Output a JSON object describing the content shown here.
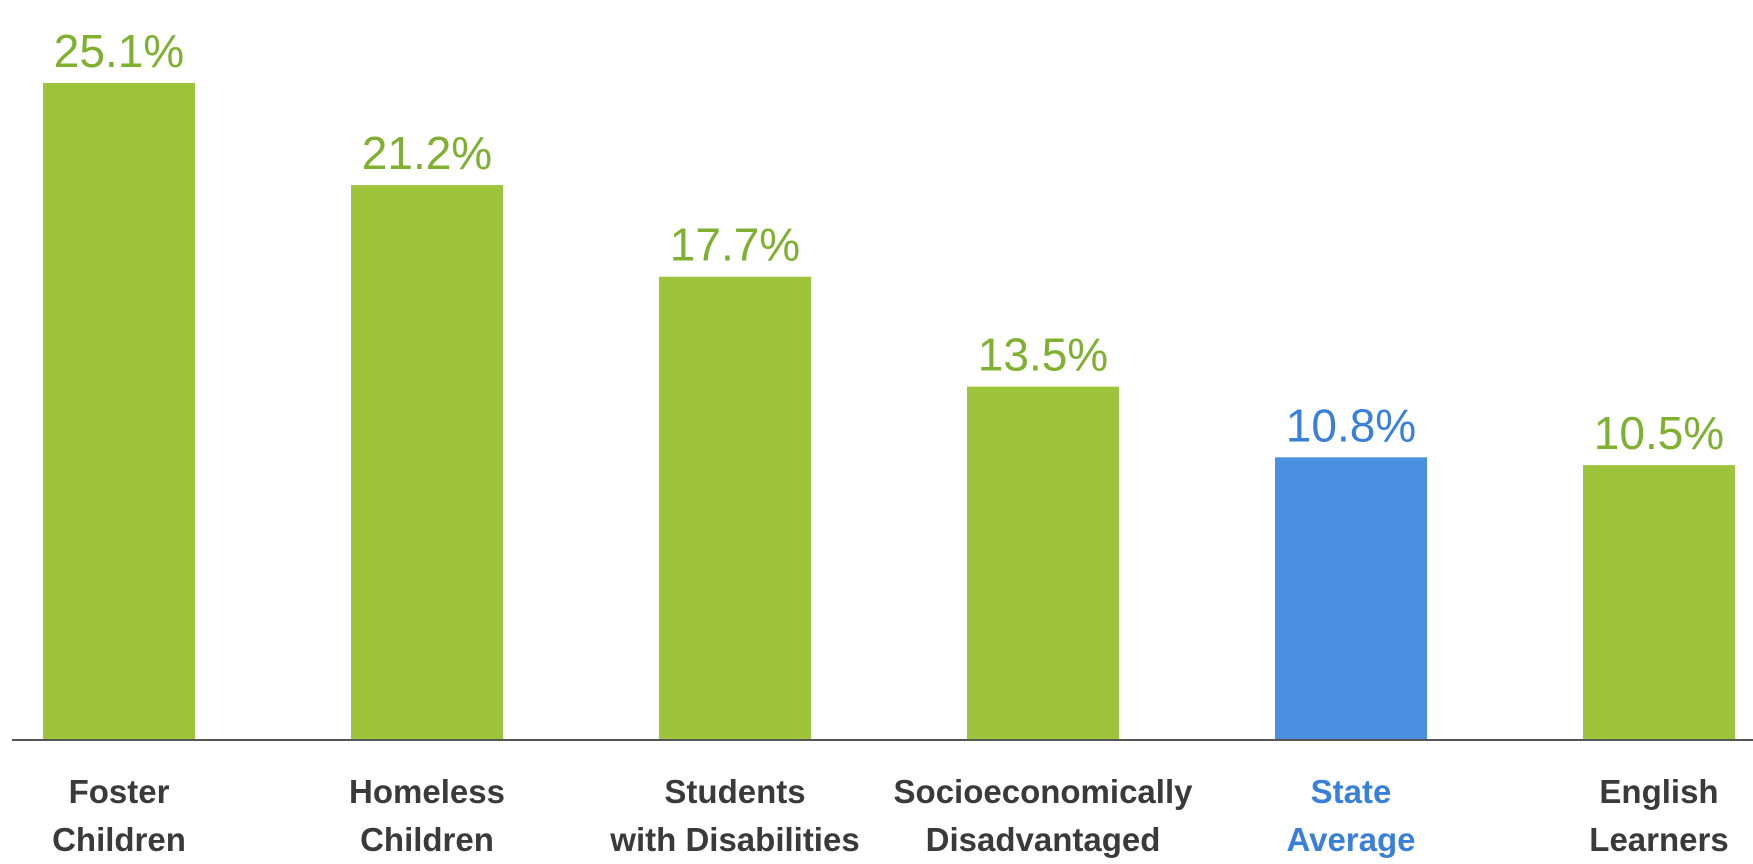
{
  "chart_data": {
    "type": "bar",
    "categories": [
      [
        "Foster",
        "Children"
      ],
      [
        "Homeless",
        "Children"
      ],
      [
        "Students",
        "with Disabilities"
      ],
      [
        "Socioeconomically",
        "Disadvantaged"
      ],
      [
        "State",
        "Average"
      ],
      [
        "English",
        "Learners"
      ]
    ],
    "values": [
      25.1,
      21.2,
      17.7,
      13.5,
      10.8,
      10.5
    ],
    "value_labels": [
      "25.1%",
      "21.2%",
      "17.7%",
      "13.5%",
      "10.8%",
      "10.5%"
    ],
    "highlight_index": 4,
    "ylim": [
      0,
      25.1
    ],
    "grid": false,
    "axis_y_visible": false,
    "colors": {
      "bar": "#9dc43b",
      "highlight_bar": "#4a90e0",
      "value_text": "#7fb030",
      "highlight_text": "#3a7fd8",
      "category_text": "#3a3a3a",
      "axis": "#555555"
    }
  }
}
